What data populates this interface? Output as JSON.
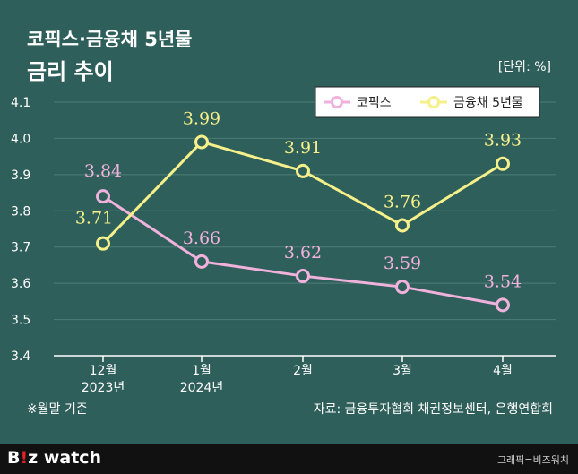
{
  "header": {
    "title_line1": "코픽스·금융채 5년물",
    "title_line2": "금리 추이",
    "unit": "[단위: %]"
  },
  "footer": {
    "note": "※월말 기준",
    "source": "자료: 금융투자협회 채권정보센터, 은행연합회",
    "logo_b": "B",
    "logo_mark": "!",
    "logo_z": "z",
    "logo_watch": " watch",
    "credit": "그래픽=비즈워치"
  },
  "colors": {
    "background": "#2f5f5a",
    "kofix": "#f0b2dc",
    "bond": "#f5f08a",
    "axis": "#ffffff",
    "grid": "#4f7d77"
  },
  "chart_data": {
    "type": "line",
    "categories": [
      "12월\n2023년",
      "1월\n2024년",
      "2월",
      "3월",
      "4월"
    ],
    "yticks": [
      3.4,
      3.5,
      3.6,
      3.7,
      3.8,
      3.9,
      4.0,
      4.1
    ],
    "ytick_labels": [
      "3.4",
      "3.5",
      "3.6",
      "3.7",
      "3.8",
      "3.9",
      "4.0",
      "4.1"
    ],
    "ylim": [
      3.4,
      4.1
    ],
    "legend": "top-right",
    "series": [
      {
        "name": "코픽스",
        "values": [
          3.84,
          3.66,
          3.62,
          3.59,
          3.54
        ],
        "labels": [
          "3.84",
          "3.66",
          "3.62",
          "3.59",
          "3.54"
        ]
      },
      {
        "name": "금융채 5년물",
        "values": [
          3.71,
          3.99,
          3.91,
          3.76,
          3.93
        ],
        "labels": [
          "3.71",
          "3.99",
          "3.91",
          "3.76",
          "3.93"
        ]
      }
    ]
  }
}
